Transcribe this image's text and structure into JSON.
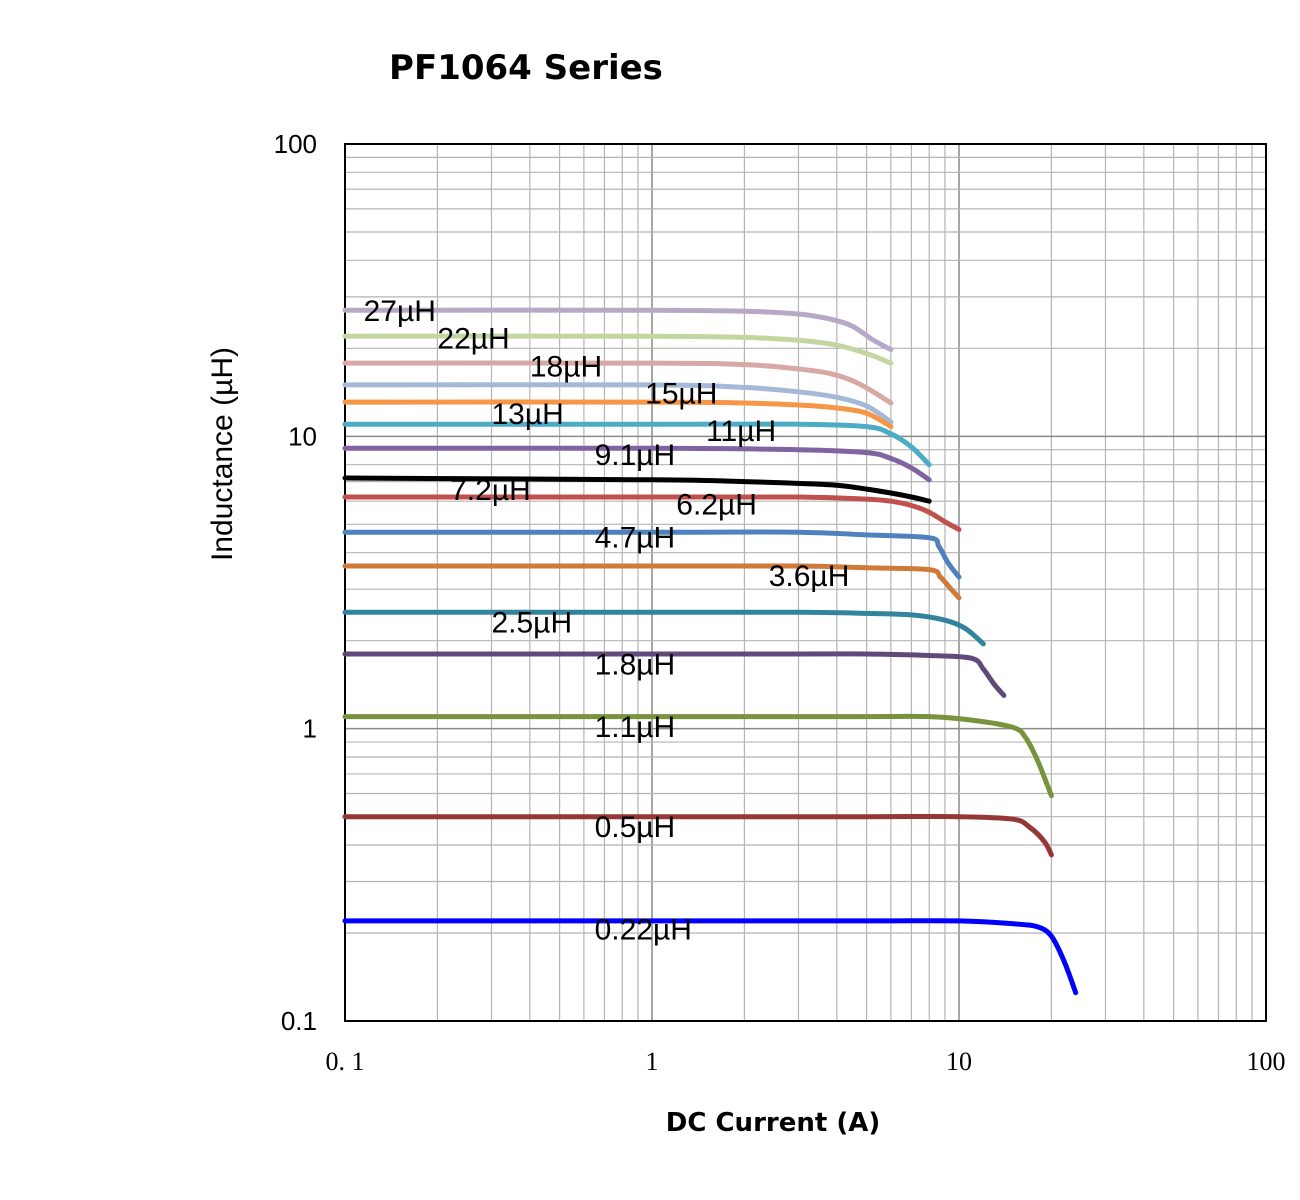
{
  "chart_data": {
    "type": "line",
    "title": "PF1064 Series",
    "xlabel": "DC Current (A)",
    "ylabel": "Inductance (µH)",
    "xscale": "log",
    "yscale": "log",
    "xlim": [
      0.1,
      100
    ],
    "ylim": [
      0.1,
      100
    ],
    "xticks": [
      0.1,
      1,
      10,
      100
    ],
    "xtick_labels": [
      "0. 1",
      "1",
      "10",
      "100"
    ],
    "yticks": [
      0.1,
      1,
      10,
      100
    ],
    "ytick_labels": [
      "0.1",
      "1",
      "10",
      "100"
    ],
    "grid": true,
    "legend": "inline labels",
    "series": [
      {
        "name": "27µH",
        "color": "#b8a8c8",
        "label_x": 0.115,
        "label_y": 27,
        "x": [
          0.1,
          1,
          2,
          3,
          3.8,
          4.5,
          5.2,
          6
        ],
        "y": [
          27,
          27,
          26.8,
          26.2,
          25.2,
          23.8,
          21.5,
          19.8
        ]
      },
      {
        "name": "22µH",
        "color": "#c4d6a0",
        "label_x": 0.2,
        "label_y": 21.8,
        "x": [
          0.1,
          1,
          2,
          3,
          4,
          5,
          6
        ],
        "y": [
          22,
          22,
          21.8,
          21.3,
          20.5,
          19.2,
          17.8
        ]
      },
      {
        "name": "18µH",
        "color": "#d8a8a4",
        "label_x": 0.4,
        "label_y": 17.5,
        "x": [
          0.1,
          1,
          2,
          3,
          3.8,
          4.5,
          5.2,
          6
        ],
        "y": [
          17.8,
          17.8,
          17.6,
          17,
          16.4,
          15.5,
          14.3,
          13
        ]
      },
      {
        "name": "15µH",
        "color": "#a4b8d8",
        "label_x": 0.95,
        "label_y": 14.1,
        "x": [
          0.1,
          1,
          2,
          3,
          4,
          5,
          6
        ],
        "y": [
          15,
          15,
          14.7,
          14.2,
          13.6,
          12.7,
          11.2
        ]
      },
      {
        "name": "13µH",
        "color": "#f79646",
        "label_x": 0.3,
        "label_y": 12,
        "x": [
          0.1,
          1,
          2,
          3,
          4,
          5,
          6
        ],
        "y": [
          13.1,
          13.1,
          13,
          12.8,
          12.5,
          12,
          10.8
        ]
      },
      {
        "name": "11µH",
        "color": "#4bacc6",
        "label_x": 1.5,
        "label_y": 10.5,
        "x": [
          0.1,
          1,
          3,
          5,
          6,
          7,
          8
        ],
        "y": [
          11,
          11,
          11,
          10.8,
          10.2,
          9.2,
          8
        ]
      },
      {
        "name": "9.1µH",
        "color": "#8064a2",
        "label_x": 0.65,
        "label_y": 8.7,
        "x": [
          0.1,
          1,
          3,
          5,
          6,
          7,
          8
        ],
        "y": [
          9.1,
          9.1,
          9,
          8.8,
          8.4,
          7.8,
          7.1
        ]
      },
      {
        "name": "7.2µH",
        "color": "#000000",
        "label_x": 0.22,
        "label_y": 6.6,
        "x": [
          0.1,
          1,
          2,
          3,
          4,
          5,
          6,
          7,
          8
        ],
        "y": [
          7.2,
          7.1,
          7,
          6.9,
          6.8,
          6.6,
          6.4,
          6.2,
          6
        ]
      },
      {
        "name": "6.2µH",
        "color": "#c0504d",
        "label_x": 1.2,
        "label_y": 5.9,
        "x": [
          0.1,
          1,
          3,
          5,
          6,
          7,
          8,
          9,
          10
        ],
        "y": [
          6.2,
          6.2,
          6.2,
          6.1,
          6,
          5.8,
          5.5,
          5.1,
          4.8
        ]
      },
      {
        "name": "4.7µH",
        "color": "#4f81bd",
        "label_x": 0.65,
        "label_y": 4.55,
        "x": [
          0.1,
          1,
          3,
          5,
          8,
          8.6,
          9.2,
          10
        ],
        "y": [
          4.7,
          4.7,
          4.7,
          4.6,
          4.5,
          4.2,
          3.7,
          3.3
        ]
      },
      {
        "name": "3.6µH",
        "color": "#d07a3a",
        "label_x": 2.4,
        "label_y": 3.35,
        "x": [
          0.1,
          1,
          3,
          5,
          8,
          8.7,
          9.3,
          10
        ],
        "y": [
          3.6,
          3.6,
          3.6,
          3.55,
          3.5,
          3.3,
          3.05,
          2.8
        ]
      },
      {
        "name": "2.5µH",
        "color": "#31849b",
        "label_x": 0.3,
        "label_y": 2.33,
        "x": [
          0.1,
          1,
          3,
          5,
          7,
          9,
          10.5,
          12
        ],
        "y": [
          2.5,
          2.5,
          2.5,
          2.48,
          2.45,
          2.35,
          2.2,
          1.95
        ]
      },
      {
        "name": "1.8µH",
        "color": "#604a7b",
        "label_x": 0.65,
        "label_y": 1.67,
        "x": [
          0.1,
          1,
          3,
          5,
          8,
          11,
          12,
          13,
          14
        ],
        "y": [
          1.8,
          1.8,
          1.8,
          1.8,
          1.78,
          1.74,
          1.6,
          1.42,
          1.3
        ]
      },
      {
        "name": "1.1µH",
        "color": "#77933c",
        "label_x": 0.65,
        "label_y": 1.02,
        "x": [
          0.1,
          1,
          5,
          8,
          11,
          15,
          16.5,
          18,
          20
        ],
        "y": [
          1.1,
          1.1,
          1.1,
          1.1,
          1.07,
          1.01,
          0.93,
          0.78,
          0.59
        ]
      },
      {
        "name": "0.5µH",
        "color": "#953735",
        "label_x": 0.65,
        "label_y": 0.465,
        "x": [
          0.1,
          1,
          5,
          10,
          15,
          17,
          19,
          20
        ],
        "y": [
          0.5,
          0.5,
          0.5,
          0.5,
          0.49,
          0.46,
          0.41,
          0.37
        ]
      },
      {
        "name": "0.22µH",
        "color": "#0000ff",
        "label_x": 0.65,
        "label_y": 0.207,
        "x": [
          0.1,
          1,
          5,
          10,
          15,
          18,
          20,
          22,
          24
        ],
        "y": [
          0.22,
          0.22,
          0.22,
          0.22,
          0.215,
          0.21,
          0.195,
          0.16,
          0.125
        ]
      }
    ]
  }
}
